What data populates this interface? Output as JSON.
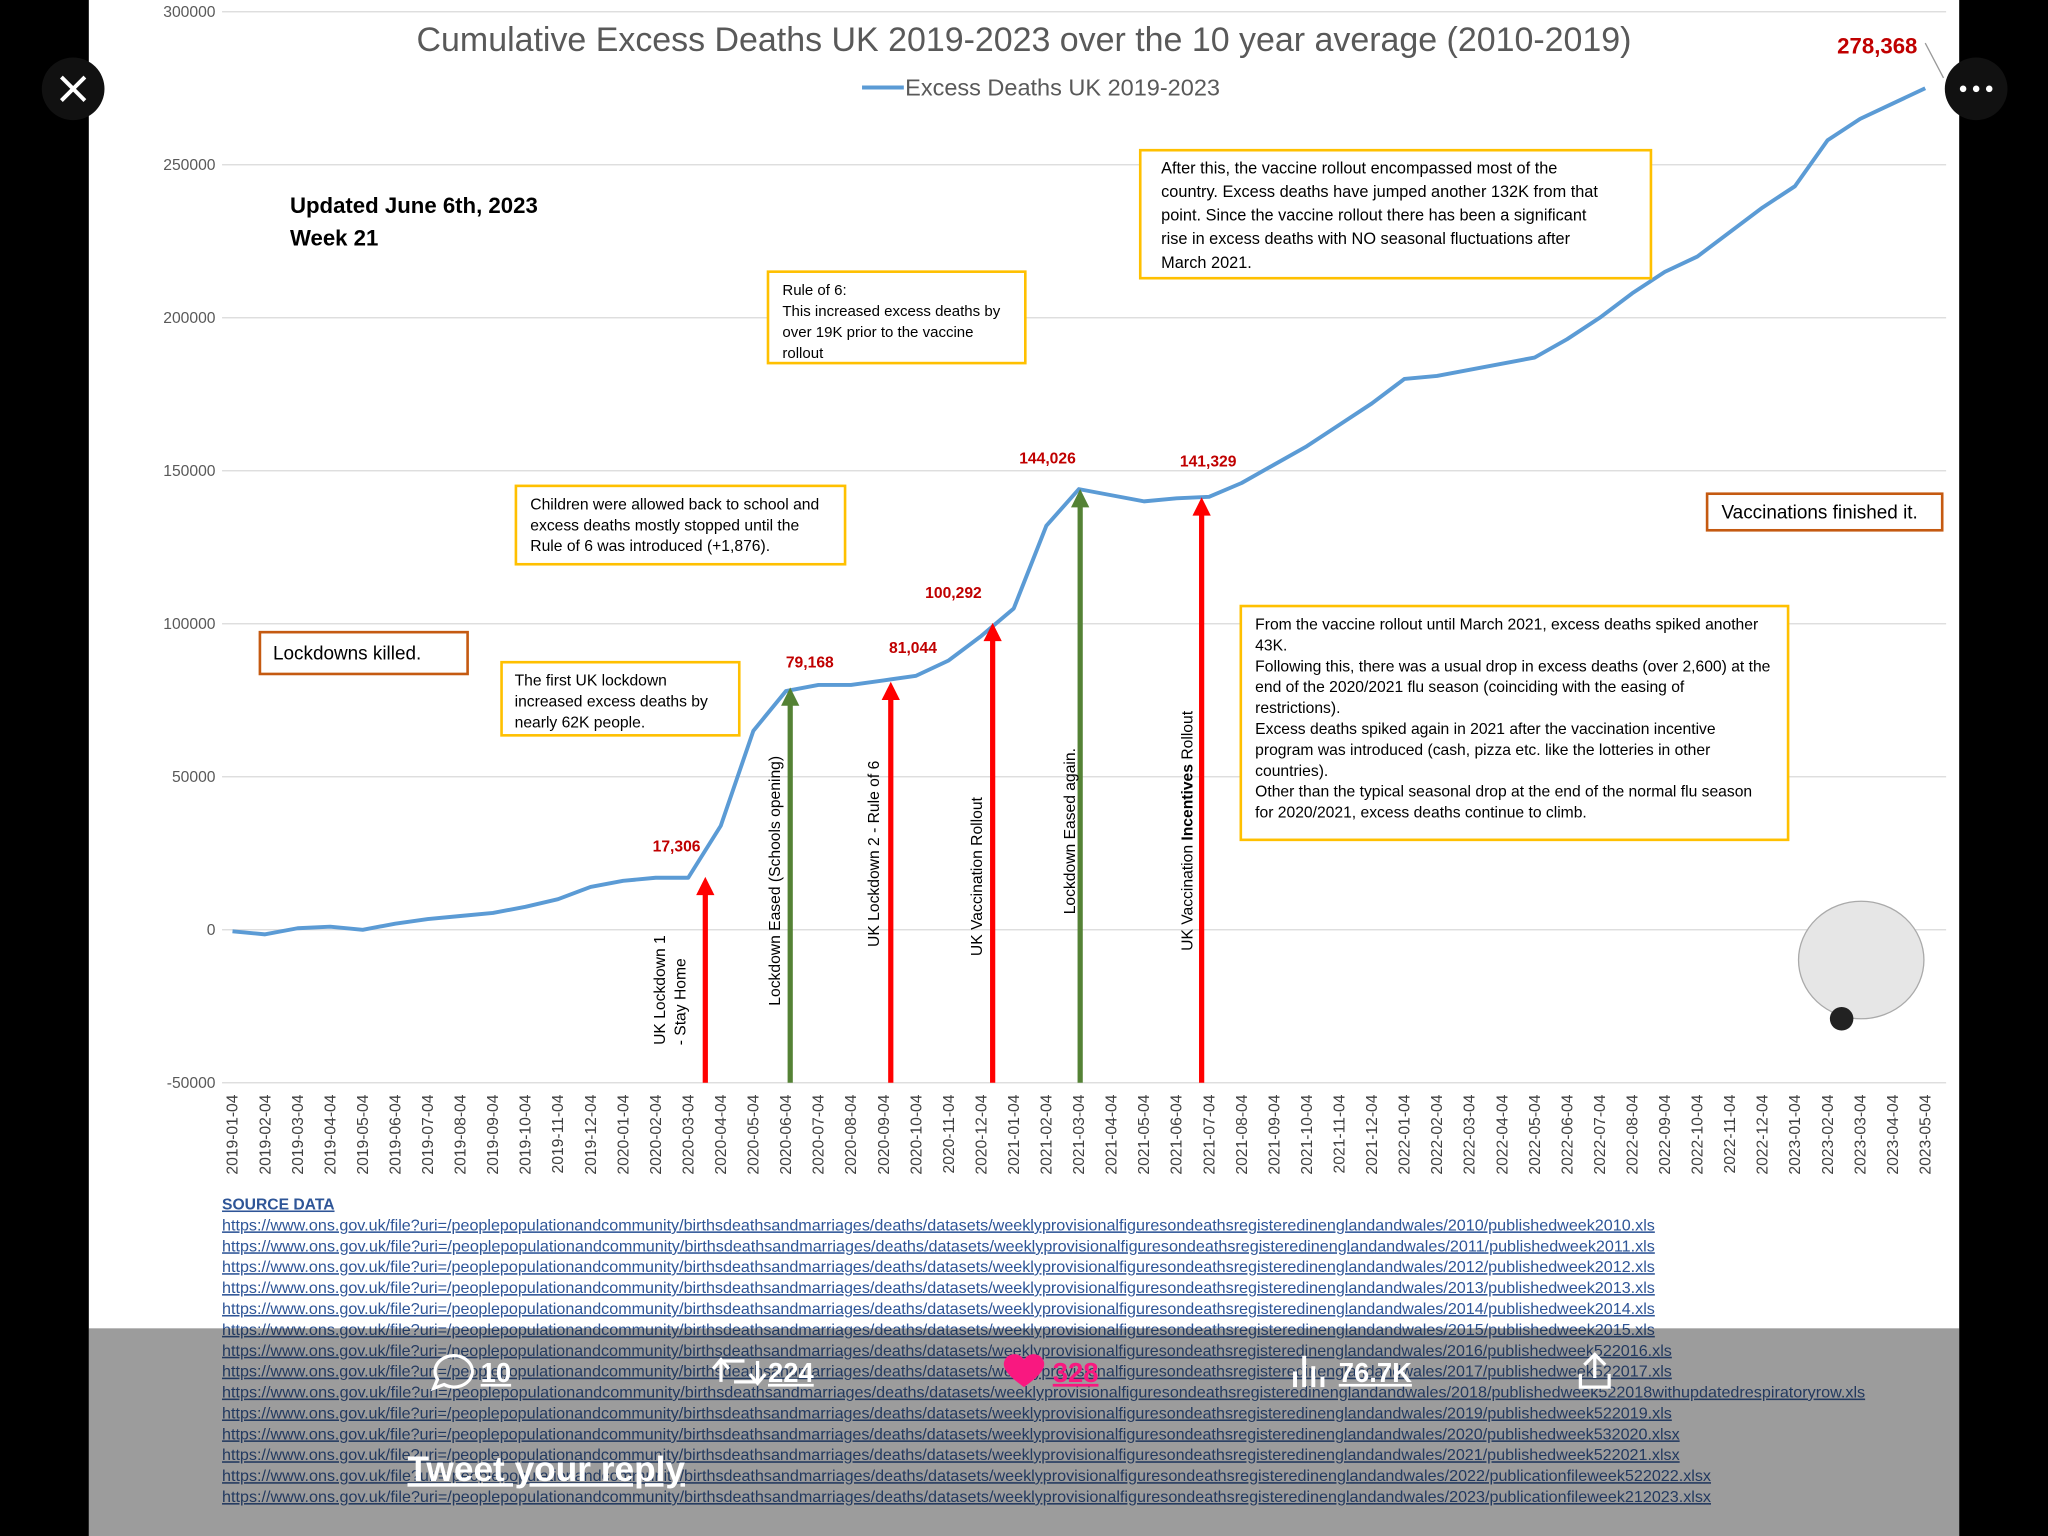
{
  "chart_data": {
    "type": "line",
    "title": "Cumulative Excess Deaths UK 2019-2023 over the 10 year average (2010-2019)",
    "categories": [
      "2019-01-04",
      "2019-02-04",
      "2019-03-04",
      "2019-04-04",
      "2019-05-04",
      "2019-06-04",
      "2019-07-04",
      "2019-08-04",
      "2019-09-04",
      "2019-10-04",
      "2019-11-04",
      "2019-12-04",
      "2020-01-04",
      "2020-02-04",
      "2020-03-04",
      "2020-04-04",
      "2020-05-04",
      "2020-06-04",
      "2020-07-04",
      "2020-08-04",
      "2020-09-04",
      "2020-10-04",
      "2020-11-04",
      "2020-12-04",
      "2021-01-04",
      "2021-02-04",
      "2021-03-04",
      "2021-04-04",
      "2021-05-04",
      "2021-06-04",
      "2021-07-04",
      "2021-08-04",
      "2021-09-04",
      "2021-10-04",
      "2021-11-04",
      "2021-12-04",
      "2022-01-04",
      "2022-02-04",
      "2022-03-04",
      "2022-04-04",
      "2022-05-04",
      "2022-06-04",
      "2022-07-04",
      "2022-08-04",
      "2022-09-04",
      "2022-10-04",
      "2022-11-04",
      "2022-12-04",
      "2023-01-04",
      "2023-02-04",
      "2023-03-04",
      "2023-04-04",
      "2023-05-04"
    ],
    "series": [
      {
        "name": "Excess Deaths UK 2019-2023",
        "color": "#5b9bd5",
        "values": [
          -500,
          -1500,
          500,
          1000,
          0,
          2000,
          3500,
          4500,
          5500,
          7500,
          10000,
          14000,
          16000,
          17000,
          17000,
          34000,
          65000,
          78000,
          80000,
          80000,
          81500,
          83000,
          88000,
          96000,
          105000,
          132000,
          144000,
          142000,
          140000,
          141000,
          141500,
          146000,
          152000,
          158000,
          165000,
          172000,
          180000,
          181000,
          183000,
          185000,
          187000,
          193000,
          200000,
          208000,
          215000,
          220000,
          228000,
          236000,
          243000,
          258000,
          265000,
          270000,
          275000
        ]
      }
    ],
    "ylim": [
      -50000,
      300000
    ],
    "yticks": [
      -50000,
      0,
      50000,
      100000,
      150000,
      200000,
      250000,
      300000
    ],
    "grid": true,
    "updated": [
      "Updated June 6th, 2023",
      "Week 21"
    ],
    "end_label": {
      "value": 278368,
      "label": "278,368"
    },
    "arrows": [
      {
        "text": [
          "UK Lockdown 1",
          "- Stay Home"
        ],
        "color": "#ff0000",
        "value": 17306,
        "label": "17,306"
      },
      {
        "text": [
          "Lockdown Eased (Schools opening)"
        ],
        "color": "#548235",
        "value": 79168,
        "label": "79,168"
      },
      {
        "text": [
          "UK Lockdown 2 - Rule of 6"
        ],
        "color": "#ff0000",
        "value": 81044,
        "label": "81,044"
      },
      {
        "text": [
          "UK Vaccination Rollout"
        ],
        "color": "#ff0000",
        "value": 100292,
        "label": "100,292"
      },
      {
        "text": [
          "Lockdown Eased again."
        ],
        "color": "#548235",
        "value": 144026,
        "label": "144,026"
      },
      {
        "text": [
          [
            "UK Vaccination",
            "Incentives",
            "Rollout"
          ]
        ],
        "color": "#ff0000",
        "value": 141329,
        "label": "141,329"
      }
    ],
    "notes": [
      {
        "border": "#ffc000",
        "lines": [
          "After this, the vaccine rollout encompassed most of the",
          "country. Excess deaths have jumped another 132K from that",
          "point. Since the vaccine rollout there has been a significant",
          "rise in excess deaths with NO seasonal fluctuations after",
          "March 2021."
        ]
      },
      {
        "border": "#ffc000",
        "lines": [
          "Rule of 6:",
          "This increased excess deaths by",
          "over 19K prior to the vaccine",
          "rollout"
        ]
      },
      {
        "border": "#ffc000",
        "lines": [
          "Children were allowed back to school and",
          "excess deaths mostly stopped until the",
          "Rule of 6 was introduced (+1,876)."
        ]
      },
      {
        "border": "#c55a11",
        "lines": [
          "Vaccinations finished it."
        ]
      },
      {
        "border": "#c55a11",
        "lines": [
          "Lockdowns killed."
        ]
      },
      {
        "border": "#ffc000",
        "lines": [
          "The first UK lockdown",
          "increased excess deaths by",
          "nearly 62K people."
        ]
      },
      {
        "border": "#ffc000",
        "lines": [
          "From the vaccine rollout until March 2021, excess deaths spiked another",
          "43K.",
          "Following this, there was a usual drop in excess deaths (over 2,600) at the",
          "end of the 2020/2021 flu season (coinciding with the easing of",
          "restrictions).",
          "Excess deaths spiked again in 2021 after the vaccination incentive",
          "program was introduced (cash, pizza etc. like the  lotteries in other",
          "countries).",
          "Other than the typical seasonal drop at the end of the normal flu season",
          "for 2020/2021, excess deaths continue to climb."
        ]
      }
    ],
    "source": {
      "title": "SOURCE DATA",
      "links": [
        "https://www.ons.gov.uk/file?uri=/peoplepopulationandcommunity/birthsdeathsandmarriages/deaths/datasets/weeklyprovisionalfiguresondeathsregisteredinenglandandwales/2010/publishedweek2010.xls",
        "https://www.ons.gov.uk/file?uri=/peoplepopulationandcommunity/birthsdeathsandmarriages/deaths/datasets/weeklyprovisionalfiguresondeathsregisteredinenglandandwales/2011/publishedweek2011.xls",
        "https://www.ons.gov.uk/file?uri=/peoplepopulationandcommunity/birthsdeathsandmarriages/deaths/datasets/weeklyprovisionalfiguresondeathsregisteredinenglandandwales/2012/publishedweek2012.xls",
        "https://www.ons.gov.uk/file?uri=/peoplepopulationandcommunity/birthsdeathsandmarriages/deaths/datasets/weeklyprovisionalfiguresondeathsregisteredinenglandandwales/2013/publishedweek2013.xls",
        "https://www.ons.gov.uk/file?uri=/peoplepopulationandcommunity/birthsdeathsandmarriages/deaths/datasets/weeklyprovisionalfiguresondeathsregisteredinenglandandwales/2014/publishedweek2014.xls",
        "https://www.ons.gov.uk/file?uri=/peoplepopulationandcommunity/birthsdeathsandmarriages/deaths/datasets/weeklyprovisionalfiguresondeathsregisteredinenglandandwales/2015/publishedweek2015.xls",
        "https://www.ons.gov.uk/file?uri=/peoplepopulationandcommunity/birthsdeathsandmarriages/deaths/datasets/weeklyprovisionalfiguresondeathsregisteredinenglandandwales/2016/publishedweek522016.xls",
        "https://www.ons.gov.uk/file?uri=/peoplepopulationandcommunity/birthsdeathsandmarriages/deaths/datasets/weeklyprovisionalfiguresondeathsregisteredinenglandandwales/2017/publishedweek522017.xls",
        "https://www.ons.gov.uk/file?uri=/peoplepopulationandcommunity/birthsdeathsandmarriages/deaths/datasets/weeklyprovisionalfiguresondeathsregisteredinenglandandwales/2018/publishedweek522018withupdatedrespiratoryrow.xls",
        "https://www.ons.gov.uk/file?uri=/peoplepopulationandcommunity/birthsdeathsandmarriages/deaths/datasets/weeklyprovisionalfiguresondeathsregisteredinenglandandwales/2019/publishedweek522019.xls",
        "https://www.ons.gov.uk/file?uri=/peoplepopulationandcommunity/birthsdeathsandmarriages/deaths/datasets/weeklyprovisionalfiguresondeathsregisteredinenglandandwales/2020/publishedweek532020.xlsx",
        "https://www.ons.gov.uk/file?uri=/peoplepopulationandcommunity/birthsdeathsandmarriages/deaths/datasets/weeklyprovisionalfiguresondeathsregisteredinenglandandwales/2021/publishedweek522021.xlsx",
        "https://www.ons.gov.uk/file?uri=/peoplepopulationandcommunity/birthsdeathsandmarriages/deaths/datasets/weeklyprovisionalfiguresondeathsregisteredinenglandandwales/2022/publicationfileweek522022.xlsx",
        "https://www.ons.gov.uk/file?uri=/peoplepopulationandcommunity/birthsdeathsandmarriages/deaths/datasets/weeklyprovisionalfiguresondeathsregisteredinenglandandwales/2023/publicationfileweek212023.xlsx"
      ]
    }
  },
  "ui": {
    "replies": "10",
    "retweets": "224",
    "likes": "328",
    "views": "76.7K",
    "reply_prompt": "Tweet your reply"
  }
}
